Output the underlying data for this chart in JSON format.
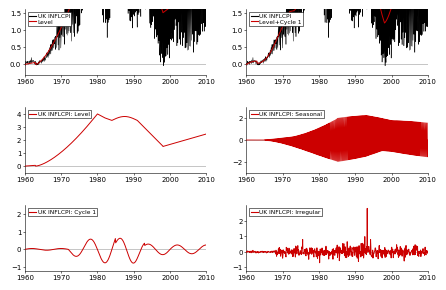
{
  "xlim": [
    1960,
    2010
  ],
  "xticks": [
    1960,
    1970,
    1980,
    1990,
    2000,
    2010
  ],
  "xticklabels": [
    "1960",
    "1970",
    "1980",
    "1990",
    "2000",
    "2010"
  ],
  "panels": [
    {
      "legend": [
        "UK INFLCPI",
        "Level"
      ],
      "ylim": [
        -0.3,
        1.6
      ],
      "yticks": [
        0.0,
        0.5,
        1.0,
        1.5
      ]
    },
    {
      "legend": [
        "UK INFLCPI",
        "Level+Cycle 1"
      ],
      "ylim": [
        -0.3,
        1.6
      ],
      "yticks": [
        0.0,
        0.5,
        1.0,
        1.5
      ]
    },
    {
      "legend": [
        "UK INFLCPI: Level"
      ],
      "ylim": [
        -0.5,
        4.5
      ],
      "yticks": [
        0.0,
        1.0,
        2.0,
        3.0,
        4.0
      ]
    },
    {
      "legend": [
        "UK INFLCPI: Seasonal"
      ],
      "ylim": [
        -3.0,
        3.0
      ],
      "yticks": [
        -2.0,
        0.0,
        2.0
      ]
    },
    {
      "legend": [
        "UK INFLCPI: Cycle 1"
      ],
      "ylim": [
        -1.2,
        2.5
      ],
      "yticks": [
        -1.0,
        0.0,
        1.0,
        2.0
      ]
    },
    {
      "legend": [
        "UK INFLCPI: Irregular"
      ],
      "ylim": [
        -1.2,
        3.0
      ],
      "yticks": [
        -1.0,
        0.0,
        1.0,
        2.0
      ]
    }
  ],
  "color_black": "#000000",
  "color_red": "#cc0000",
  "color_gray": "#999999",
  "background": "#ffffff",
  "fontsize_legend": 4.2,
  "fontsize_tick": 5.0
}
